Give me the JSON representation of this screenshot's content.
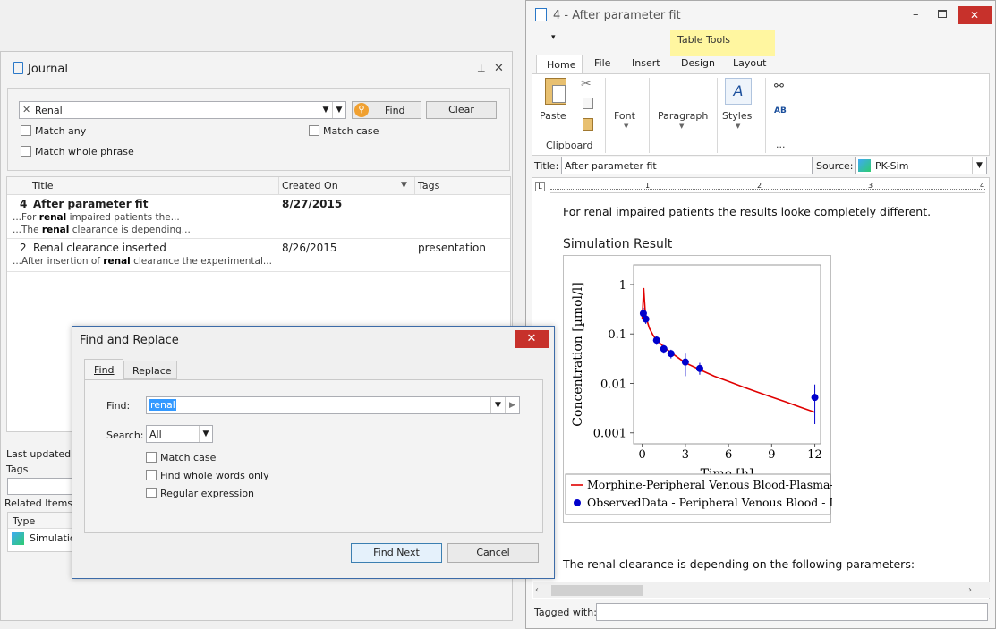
{
  "journal": {
    "title": "Journal",
    "search": {
      "query": "Renal",
      "find_label": "Find",
      "clear_label": "Clear"
    },
    "options": {
      "match_any": "Match any",
      "match_case": "Match case",
      "match_whole_phrase": "Match whole phrase"
    },
    "columns": {
      "title": "Title",
      "created_on": "Created On",
      "tags": "Tags"
    },
    "rows": [
      {
        "num": "4",
        "title": "After parameter fit",
        "created_on": "8/27/2015",
        "tags": "",
        "bold": true,
        "snippets": [
          {
            "pre": "...For ",
            "hit": "renal",
            "post": " impaired patients the..."
          },
          {
            "pre": "...The ",
            "hit": "renal",
            "post": " clearance is depending..."
          }
        ]
      },
      {
        "num": "2",
        "title": "Renal clearance inserted",
        "created_on": "8/26/2015",
        "tags": "presentation",
        "bold": false,
        "snippets": [
          {
            "pre": "...After insertion of ",
            "hit": "renal",
            "post": " clearance the experimental..."
          }
        ]
      }
    ],
    "details": {
      "last_updated": "Last updated o",
      "tags": "Tags",
      "related_items": "Related Items",
      "type_col": "Type",
      "related_first": "Simulation"
    }
  },
  "doc_window": {
    "title": "4 - After parameter fit",
    "quick_access": "▾",
    "table_tools": "Table Tools",
    "tabs": [
      "Home",
      "File",
      "Insert",
      "Design",
      "Layout"
    ],
    "ribbon": {
      "paste": "Paste",
      "clipboard": "Clipboard",
      "font": "Font",
      "paragraph": "Paragraph",
      "styles": "Styles",
      "more": "..."
    },
    "title_label": "Title:",
    "title_value": "After parameter fit",
    "source_label": "Source:",
    "source_value": "PK-Sim",
    "para1": "For renal impaired patients the results looke completely different.",
    "heading": "Simulation Result",
    "para2": "The renal clearance is depending on the following parameters:",
    "tagged_with_label": "Tagged with:",
    "ruler_marks": [
      "1",
      "2",
      "3",
      "4"
    ]
  },
  "chart_data": {
    "type": "line",
    "ylabel": "Concentration [µmol/l]",
    "xlabel": "Time [h]",
    "yscale": "log",
    "ylim": [
      0.0006,
      2.5
    ],
    "xlim": [
      -0.6,
      12.4
    ],
    "xticks": [
      0,
      3,
      6,
      9,
      12
    ],
    "yticks": [
      1,
      0.1,
      0.01,
      0.001
    ],
    "ytick_labels": [
      "1",
      "0.1",
      "0.01",
      "0.001"
    ],
    "series": [
      {
        "name": "Morphine-Peripheral Venous Blood-Plasma-",
        "kind": "line",
        "color": "#e00000",
        "x": [
          0,
          0.1,
          0.2,
          0.3,
          0.5,
          0.75,
          1,
          1.5,
          2,
          2.5,
          3,
          4,
          5,
          6,
          7,
          8,
          9,
          10,
          11,
          12
        ],
        "y": [
          0.2,
          0.85,
          0.3,
          0.2,
          0.13,
          0.095,
          0.075,
          0.055,
          0.042,
          0.033,
          0.026,
          0.019,
          0.014,
          0.011,
          0.0085,
          0.0067,
          0.0053,
          0.0042,
          0.0033,
          0.0026
        ]
      },
      {
        "name": "ObservedData - Peripheral Venous Blood - I",
        "kind": "scatter",
        "color": "#0000cc",
        "x": [
          0.08,
          0.25,
          1,
          1.5,
          2,
          3,
          4,
          12
        ],
        "y": [
          0.26,
          0.2,
          0.075,
          0.05,
          0.04,
          0.027,
          0.02,
          0.0052
        ],
        "err_low": [
          0.2,
          0.16,
          0.06,
          0.04,
          0.032,
          0.014,
          0.015,
          0.0015
        ],
        "err_high": [
          0.34,
          0.25,
          0.09,
          0.06,
          0.048,
          0.04,
          0.026,
          0.0095
        ]
      }
    ]
  },
  "dialog": {
    "title": "Find and Replace",
    "tabs": [
      "Find",
      "Replace"
    ],
    "find_label": "Find:",
    "find_value": "renal",
    "search_label": "Search:",
    "search_value": "All",
    "options": [
      "Match case",
      "Find whole words only",
      "Regular expression"
    ],
    "find_next": "Find Next",
    "cancel": "Cancel"
  },
  "colors": {
    "accent": "#f0a030",
    "dialog_border": "#3c6ba8",
    "close_red": "#c7312b",
    "table_tools_yellow": "#fff6a0"
  }
}
